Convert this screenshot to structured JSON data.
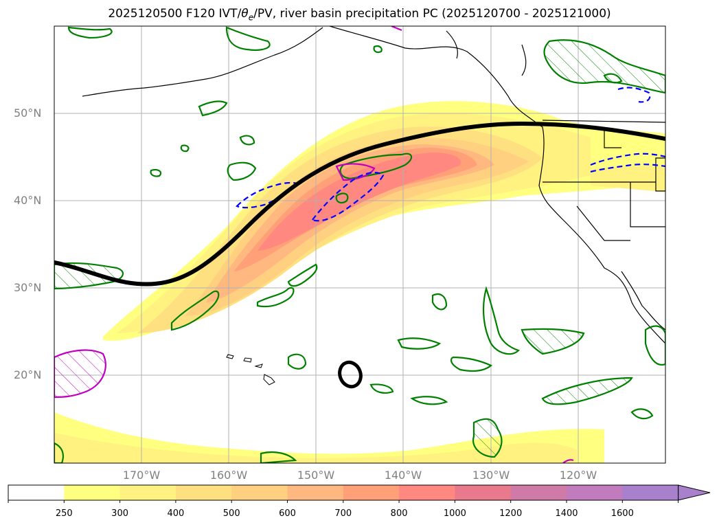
{
  "title": {
    "prefix": "2025120500 F120 IVT/",
    "theta": "θ",
    "theta_sub": "e",
    "suffix": "/PV, river basin precipitation PC (2025120700 - 2025121000)"
  },
  "map": {
    "lat_labels": [
      "50°N",
      "40°N",
      "30°N",
      "20°N"
    ],
    "lon_labels": [
      "170°W",
      "160°W",
      "150°W",
      "140°W",
      "130°W",
      "120°W"
    ],
    "extent": {
      "lon_min": -180,
      "lon_max": -110,
      "lat_min": 10,
      "lat_max": 60
    }
  },
  "colorbar": {
    "ticks": [
      "250",
      "300",
      "400",
      "500",
      "600",
      "700",
      "800",
      "1000",
      "1200",
      "1400",
      "1600"
    ],
    "colors": [
      "#ffffff",
      "#ffff80",
      "#fff280",
      "#ffe080",
      "#ffd080",
      "#ffb880",
      "#ffa078",
      "#ff8880",
      "#e87a8c",
      "#d07aa8",
      "#c07cbc",
      "#a880cc"
    ],
    "extend": "max"
  },
  "colors": {
    "ivt_fill": "#ffff80",
    "pv_contour": "#008000",
    "theta_dashed": "#0000ff",
    "magenta_contour": "#c000c0",
    "jet_line": "#000000"
  }
}
